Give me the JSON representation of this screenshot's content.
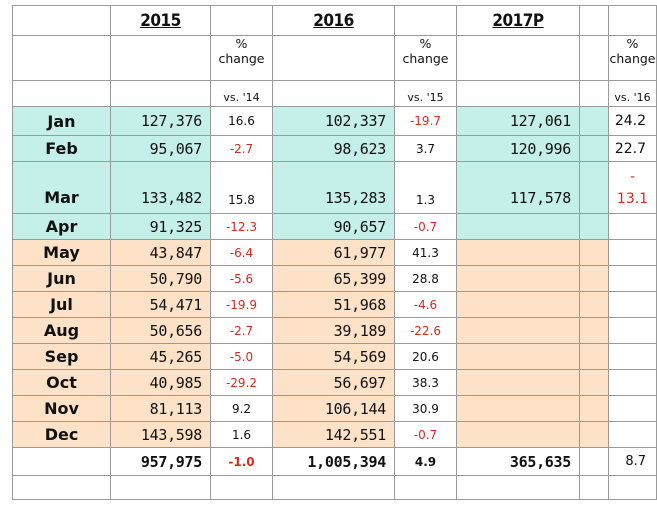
{
  "header": {
    "years": [
      "2015",
      "2016",
      "2017P"
    ],
    "pct_label_1": "%",
    "pct_label_2": "change",
    "vs": [
      "vs. '14",
      "vs. '15",
      "vs. '16"
    ]
  },
  "colors": {
    "q1_fill": "#c5f0ea",
    "rest_fill": "#fde2c8",
    "negative_text": "#d92a1c"
  },
  "rows": [
    {
      "month": "Jan",
      "v2015": "127,376",
      "c2015": "16.6",
      "v2016": "102,337",
      "c2016": "-19.7",
      "v2017": "127,061",
      "c2017": "24.2"
    },
    {
      "month": "Feb",
      "v2015": "95,067",
      "c2015": "-2.7",
      "v2016": "98,623",
      "c2016": "3.7",
      "v2017": "120,996",
      "c2017": "22.7"
    },
    {
      "month": "Mar",
      "v2015": "133,482",
      "c2015": "15.8",
      "v2016": "135,283",
      "c2016": "1.3",
      "v2017": "117,578",
      "c2017_line1": "-",
      "c2017_line2": "13.1"
    },
    {
      "month": "Apr",
      "v2015": "91,325",
      "c2015": "-12.3",
      "v2016": "90,657",
      "c2016": "-0.7"
    },
    {
      "month": "May",
      "v2015": "43,847",
      "c2015": "-6.4",
      "v2016": "61,977",
      "c2016": "41.3"
    },
    {
      "month": "Jun",
      "v2015": "50,790",
      "c2015": "-5.6",
      "v2016": "65,399",
      "c2016": "28.8"
    },
    {
      "month": "Jul",
      "v2015": "54,471",
      "c2015": "-19.9",
      "v2016": "51,968",
      "c2016": "-4.6"
    },
    {
      "month": "Aug",
      "v2015": "50,656",
      "c2015": "-2.7",
      "v2016": "39,189",
      "c2016": "-22.6"
    },
    {
      "month": "Sep",
      "v2015": "45,265",
      "c2015": "-5.0",
      "v2016": "54,569",
      "c2016": "20.6"
    },
    {
      "month": "Oct",
      "v2015": "40,985",
      "c2015": "-29.2",
      "v2016": "56,697",
      "c2016": "38.3"
    },
    {
      "month": "Nov",
      "v2015": "81,113",
      "c2015": "9.2",
      "v2016": "106,144",
      "c2016": "30.9"
    },
    {
      "month": "Dec",
      "v2015": "143,598",
      "c2015": "1.6",
      "v2016": "142,551",
      "c2016": "-0.7"
    }
  ],
  "totals": {
    "v2015": "957,975",
    "c2015": "-1.0",
    "v2016": "1,005,394",
    "c2016": "4.9",
    "v2017": "365,635",
    "c2017": "8.7"
  }
}
